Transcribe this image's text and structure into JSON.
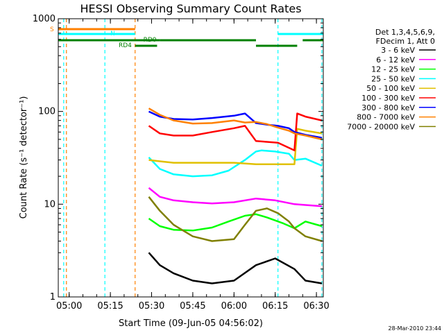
{
  "chart_data": {
    "type": "line",
    "title": "HESSI Observing Summary Count Rates",
    "xlabel": "Start Time (09-Jun-05 04:56:02)",
    "ylabel": "Count Rate (s⁻¹ detector⁻¹)",
    "yscale": "log",
    "ylim": [
      1,
      1000
    ],
    "xlim": [
      "04:56:02",
      "06:32:30"
    ],
    "x_ticks": [
      "05:00",
      "05:15",
      "05:30",
      "05:45",
      "06:00",
      "06:15",
      "06:30"
    ],
    "y_ticks": [
      "1",
      "10",
      "100",
      "1000"
    ],
    "legend_header": [
      "Det 1,3,4,5,6,9,",
      "FDecim 1, Att 0"
    ],
    "legend_position": "right",
    "series": [
      {
        "name": "3 - 6 keV",
        "color": "#000000",
        "points": [
          [
            "05:29",
            3.0
          ],
          [
            "05:33",
            2.2
          ],
          [
            "05:38",
            1.8
          ],
          [
            "05:45",
            1.5
          ],
          [
            "05:52",
            1.4
          ],
          [
            "06:00",
            1.5
          ],
          [
            "06:08",
            2.2
          ],
          [
            "06:15",
            2.6
          ],
          [
            "06:22",
            2.0
          ],
          [
            "06:26",
            1.5
          ],
          [
            "06:32",
            1.4
          ]
        ]
      },
      {
        "name": "6 - 12 keV",
        "color": "#ff00ff",
        "points": [
          [
            "05:29",
            15
          ],
          [
            "05:33",
            12
          ],
          [
            "05:38",
            11
          ],
          [
            "05:45",
            10.5
          ],
          [
            "05:52",
            10.2
          ],
          [
            "06:00",
            10.5
          ],
          [
            "06:08",
            11.5
          ],
          [
            "06:15",
            11
          ],
          [
            "06:22",
            10
          ],
          [
            "06:26",
            9.8
          ],
          [
            "06:32",
            9.5
          ]
        ]
      },
      {
        "name": "12 - 25 keV",
        "color": "#00ff00",
        "points": [
          [
            "05:29",
            7
          ],
          [
            "05:33",
            5.8
          ],
          [
            "05:38",
            5.3
          ],
          [
            "05:45",
            5.2
          ],
          [
            "05:52",
            5.6
          ],
          [
            "05:58",
            6.5
          ],
          [
            "06:04",
            7.5
          ],
          [
            "06:08",
            7.8
          ],
          [
            "06:12",
            7.2
          ],
          [
            "06:18",
            6.2
          ],
          [
            "06:22",
            5.5
          ],
          [
            "06:26",
            6.5
          ],
          [
            "06:32",
            5.8
          ]
        ]
      },
      {
        "name": "25 - 50 keV",
        "color": "#00ffff",
        "points": [
          [
            "05:29",
            32
          ],
          [
            "05:33",
            24
          ],
          [
            "05:38",
            21
          ],
          [
            "05:45",
            20
          ],
          [
            "05:52",
            20.5
          ],
          [
            "05:58",
            23
          ],
          [
            "06:04",
            30
          ],
          [
            "06:08",
            37
          ],
          [
            "06:10",
            38
          ],
          [
            "06:15",
            37
          ],
          [
            "06:20",
            35
          ],
          [
            "06:22",
            30
          ],
          [
            "06:26",
            31
          ],
          [
            "06:32",
            26
          ]
        ]
      },
      {
        "name": "50 - 100 keV",
        "color": "#e0c000",
        "points": [
          [
            "05:29",
            30
          ],
          [
            "05:33",
            29
          ],
          [
            "05:38",
            28
          ],
          [
            "05:45",
            28
          ],
          [
            "05:52",
            28
          ],
          [
            "06:00",
            28
          ],
          [
            "06:08",
            27
          ],
          [
            "06:15",
            27
          ],
          [
            "06:22",
            27
          ],
          [
            "06:23",
            65
          ],
          [
            "06:26",
            62
          ],
          [
            "06:32",
            58
          ]
        ]
      },
      {
        "name": "100 - 300 keV",
        "color": "#ff0000",
        "points": [
          [
            "05:29",
            70
          ],
          [
            "05:33",
            58
          ],
          [
            "05:38",
            55
          ],
          [
            "05:45",
            55
          ],
          [
            "05:52",
            60
          ],
          [
            "06:00",
            66
          ],
          [
            "06:04",
            70
          ],
          [
            "06:08",
            48
          ],
          [
            "06:12",
            47
          ],
          [
            "06:16",
            46
          ],
          [
            "06:22",
            38
          ],
          [
            "06:23",
            95
          ],
          [
            "06:26",
            88
          ],
          [
            "06:32",
            80
          ]
        ]
      },
      {
        "name": "300 - 800 keV",
        "color": "#0000ff",
        "points": [
          [
            "05:29",
            100
          ],
          [
            "05:33",
            88
          ],
          [
            "05:38",
            83
          ],
          [
            "05:45",
            82
          ],
          [
            "05:52",
            85
          ],
          [
            "06:00",
            90
          ],
          [
            "06:04",
            95
          ],
          [
            "06:08",
            75
          ],
          [
            "06:12",
            72
          ],
          [
            "06:16",
            70
          ],
          [
            "06:20",
            66
          ],
          [
            "06:22",
            60
          ],
          [
            "06:26",
            56
          ],
          [
            "06:32",
            52
          ]
        ]
      },
      {
        "name": "800 - 7000 keV",
        "color": "#ff8000",
        "points": [
          [
            "05:29",
            108
          ],
          [
            "05:33",
            92
          ],
          [
            "05:38",
            80
          ],
          [
            "05:45",
            74
          ],
          [
            "05:52",
            75
          ],
          [
            "06:00",
            80
          ],
          [
            "06:04",
            76
          ],
          [
            "06:08",
            77
          ],
          [
            "06:12",
            73
          ],
          [
            "06:16",
            67
          ],
          [
            "06:20",
            62
          ],
          [
            "06:22",
            58
          ],
          [
            "06:26",
            55
          ],
          [
            "06:32",
            50
          ]
        ]
      },
      {
        "name": "7000 - 20000 keV",
        "color": "#808000",
        "points": [
          [
            "05:29",
            12
          ],
          [
            "05:33",
            8.5
          ],
          [
            "05:38",
            6
          ],
          [
            "05:45",
            4.5
          ],
          [
            "05:52",
            4
          ],
          [
            "06:00",
            4.2
          ],
          [
            "06:04",
            6
          ],
          [
            "06:08",
            8.5
          ],
          [
            "06:12",
            9
          ],
          [
            "06:16",
            8
          ],
          [
            "06:20",
            6.5
          ],
          [
            "06:22",
            5.5
          ],
          [
            "06:26",
            4.5
          ],
          [
            "06:32",
            4
          ]
        ]
      }
    ],
    "flags": [
      {
        "label": "S",
        "color": "#ff8000",
        "segments": [
          [
            "04:56:02",
            "05:24"
          ]
        ]
      },
      {
        "label": "N",
        "color": "#00ffff",
        "segments": [
          [
            "04:56:02",
            "05:24"
          ],
          [
            "06:16",
            "06:32:30"
          ]
        ]
      },
      {
        "label": "RD0",
        "color": "#008000",
        "segments": [
          [
            "04:56:02",
            "05:33"
          ],
          [
            "05:33",
            "06:08"
          ],
          [
            "06:25",
            "06:32:30"
          ]
        ]
      },
      {
        "label": "RD4",
        "color": "#008000",
        "segments": [
          [
            "05:24",
            "05:32"
          ],
          [
            "06:08",
            "06:23"
          ]
        ]
      }
    ],
    "vlines": [
      {
        "time": "04:58",
        "color": "#00ffff"
      },
      {
        "time": "04:59",
        "color": "#ff8000"
      },
      {
        "time": "05:13",
        "color": "#00ffff"
      },
      {
        "time": "05:24",
        "color": "#ff8000"
      },
      {
        "time": "06:16",
        "color": "#00ffff"
      },
      {
        "time": "06:32",
        "color": "#00ffff"
      }
    ]
  },
  "footer": {
    "timestamp": "28-Mar-2010 23:44"
  }
}
